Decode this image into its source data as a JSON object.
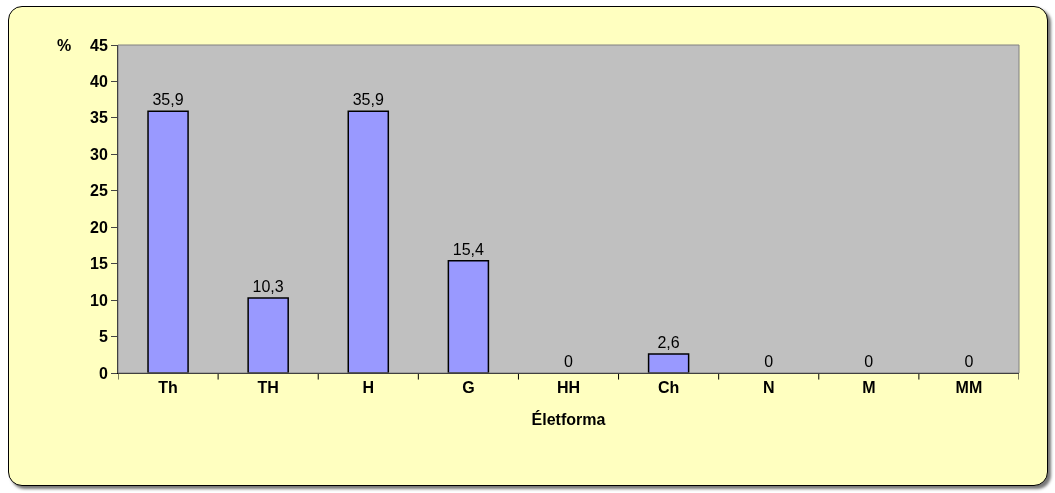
{
  "chart_data": {
    "type": "bar",
    "xlabel": "Életforma",
    "ylabel": "%",
    "categories": [
      "Th",
      "TH",
      "H",
      "G",
      "HH",
      "Ch",
      "N",
      "M",
      "MM"
    ],
    "values": [
      35.9,
      10.3,
      35.9,
      15.4,
      0,
      2.6,
      0,
      0,
      0
    ],
    "value_labels": [
      "35,9",
      "10,3",
      "35,9",
      "15,4",
      "0",
      "2,6",
      "0",
      "0",
      "0"
    ],
    "color": "#9999ff",
    "ylim": [
      0,
      45
    ],
    "yticks": [
      0,
      5,
      10,
      15,
      20,
      25,
      30,
      35,
      40,
      45
    ],
    "grid": false,
    "legend": false
  }
}
